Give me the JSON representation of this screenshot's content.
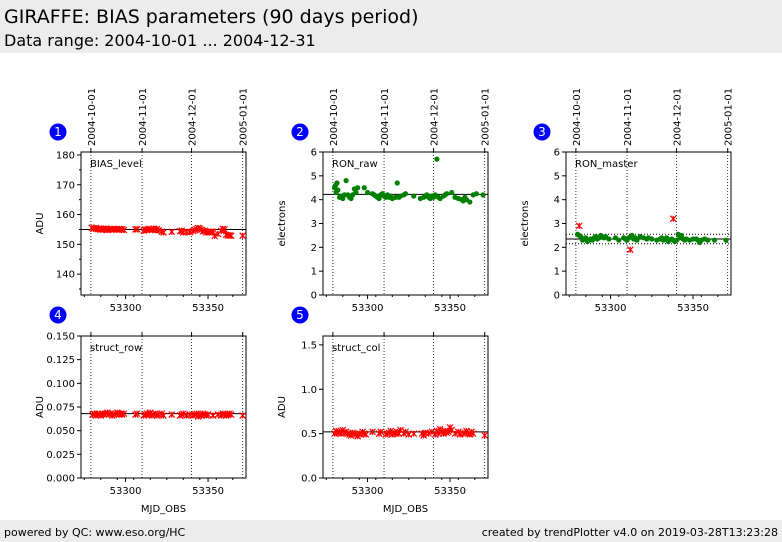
{
  "header": {
    "title": "GIRAFFE: BIAS parameters (90 days period)",
    "subtitle": "Data range: 2004-10-01 ... 2004-12-31"
  },
  "footer": {
    "left": "powered by QC: www.eso.org/HC",
    "right": "created by trendPlotter v4.0 on 2019-03-28T13:23:28"
  },
  "colors": {
    "red": "#ff0000",
    "green": "#008000",
    "badge": "#0000ff"
  },
  "chart_data": [
    {
      "type": "scatter",
      "index_label": "1",
      "panel_label": "BIAS_level",
      "ylabel": "ADU",
      "xlabel": "",
      "xlim": [
        53273,
        53373
      ],
      "ylim": [
        133,
        181
      ],
      "yticks": [
        140,
        150,
        160,
        170,
        180
      ],
      "yminor": 5,
      "ytick_format": "int",
      "xticks": [
        53300,
        53350
      ],
      "show_xtick_labels": true,
      "date_ticks": [
        {
          "x": 53279,
          "label": "2004-10-01"
        },
        {
          "x": 53310,
          "label": "2004-11-01"
        },
        {
          "x": 53340,
          "label": "2004-12-01"
        },
        {
          "x": 53371,
          "label": "2005-01-01"
        }
      ],
      "ref_lines": [
        {
          "y": 155.0,
          "style": "solid"
        }
      ],
      "series": [
        {
          "marker": "star",
          "color": "red",
          "x": [
            53279.5,
            53280.5,
            53282,
            53283,
            53284,
            53285,
            53286,
            53287,
            53288,
            53289,
            53290,
            53291,
            53292,
            53293,
            53294,
            53295,
            53296,
            53297,
            53298,
            53299,
            53306,
            53307,
            53311,
            53312,
            53313,
            53314,
            53315,
            53316,
            53317,
            53318,
            53319,
            53320,
            53322,
            53323,
            53328,
            53333,
            53334,
            53335,
            53337,
            53339,
            53341,
            53342,
            53343,
            53344,
            53345,
            53346,
            53347,
            53348,
            53349,
            53350,
            53351,
            53352,
            53353,
            53354,
            53356,
            53358,
            53359,
            53360,
            53361,
            53362,
            53363,
            53364,
            53371
          ],
          "y": [
            155.6,
            155.2,
            155.5,
            155.1,
            155.3,
            154.9,
            155.2,
            155.0,
            155.3,
            154.8,
            155.1,
            155.0,
            155.2,
            155.0,
            155.1,
            154.9,
            155.2,
            155.0,
            155.1,
            154.8,
            155.0,
            155.1,
            154.6,
            155.0,
            154.8,
            155.2,
            155.0,
            154.9,
            155.3,
            154.8,
            155.1,
            154.7,
            154.3,
            154.0,
            154.2,
            154.4,
            154.6,
            154.0,
            154.2,
            154.1,
            154.5,
            154.8,
            155.2,
            155.5,
            155.3,
            154.9,
            154.4,
            154.6,
            154.0,
            154.2,
            154.0,
            154.3,
            154.2,
            152.8,
            153.5,
            154.5,
            155.2,
            155.0,
            153.2,
            153.0,
            153.0,
            152.9,
            152.9
          ]
        }
      ]
    },
    {
      "type": "scatter",
      "index_label": "2",
      "panel_label": "RON_raw",
      "ylabel": "electrons",
      "xlabel": "",
      "xlim": [
        53273,
        53373
      ],
      "ylim": [
        0,
        6
      ],
      "yticks": [
        0,
        1,
        2,
        3,
        4,
        5,
        6
      ],
      "yminor": 0,
      "ytick_format": "int",
      "xticks": [
        53300,
        53350
      ],
      "show_xtick_labels": true,
      "date_ticks": [
        {
          "x": 53279,
          "label": "2004-10-01"
        },
        {
          "x": 53310,
          "label": "2004-11-01"
        },
        {
          "x": 53340,
          "label": "2004-12-01"
        },
        {
          "x": 53371,
          "label": "2005-01-01"
        }
      ],
      "ref_lines": [
        {
          "y": 4.22,
          "style": "solid"
        }
      ],
      "series": [
        {
          "marker": "dot",
          "color": "green",
          "x": [
            53280,
            53280.6,
            53281,
            53281.5,
            53282,
            53283,
            53284,
            53285,
            53286,
            53287,
            53288,
            53289,
            53290,
            53291,
            53292,
            53293,
            53294,
            53298,
            53300,
            53303,
            53304,
            53305,
            53306,
            53307,
            53308,
            53309,
            53310,
            53311,
            53312,
            53313,
            53314,
            53315,
            53317,
            53318,
            53319,
            53320,
            53322,
            53323,
            53328,
            53332,
            53334,
            53335,
            53336,
            53337,
            53338,
            53339,
            53340,
            53341,
            53342,
            53343,
            53344,
            53346,
            53347,
            53348,
            53351,
            53353,
            53355,
            53357,
            53358,
            53359,
            53360,
            53362,
            53364,
            53366,
            53370
          ],
          "y": [
            4.5,
            4.6,
            4.3,
            4.7,
            4.4,
            4.1,
            4.15,
            4.05,
            4.2,
            4.8,
            4.2,
            4.1,
            4.05,
            4.2,
            4.45,
            4.3,
            4.5,
            4.5,
            4.3,
            4.25,
            4.2,
            4.15,
            4.1,
            4.05,
            4.2,
            4.25,
            4.15,
            4.1,
            4.2,
            4.1,
            4.15,
            4.05,
            4.1,
            4.7,
            4.1,
            4.15,
            4.2,
            4.25,
            4.15,
            4.05,
            4.1,
            4.15,
            4.2,
            4.1,
            4.05,
            4.15,
            4.1,
            4.2,
            5.7,
            4.1,
            4.05,
            4.15,
            4.2,
            4.25,
            4.3,
            4.1,
            4.05,
            4.0,
            3.95,
            4.1,
            4.0,
            3.9,
            4.2,
            4.25,
            4.2
          ]
        }
      ]
    },
    {
      "type": "scatter",
      "index_label": "3",
      "panel_label": "RON_master",
      "ylabel": "electrons",
      "xlabel": "",
      "xlim": [
        53273,
        53373
      ],
      "ylim": [
        0,
        6
      ],
      "yticks": [
        0,
        1,
        2,
        3,
        4,
        5,
        6
      ],
      "yminor": 0,
      "ytick_format": "int",
      "xticks": [
        53300,
        53350
      ],
      "show_xtick_labels": true,
      "date_ticks": [
        {
          "x": 53279,
          "label": "2004-10-01"
        },
        {
          "x": 53310,
          "label": "2004-11-01"
        },
        {
          "x": 53340,
          "label": "2004-12-01"
        },
        {
          "x": 53371,
          "label": "2005-01-01"
        }
      ],
      "ref_lines": [
        {
          "y": 2.35,
          "style": "solid"
        },
        {
          "y": 2.55,
          "style": "dotted"
        },
        {
          "y": 2.15,
          "style": "dotted"
        }
      ],
      "series": [
        {
          "marker": "dot",
          "color": "green",
          "x": [
            53280,
            53281,
            53282,
            53283,
            53284,
            53285,
            53286,
            53287,
            53288,
            53289,
            53290,
            53291,
            53292,
            53293,
            53294,
            53295,
            53296,
            53297,
            53299,
            53303,
            53305,
            53308,
            53309,
            53310,
            53311,
            53312,
            53313,
            53314,
            53315,
            53316,
            53318,
            53320,
            53322,
            53323,
            53325,
            53328,
            53330,
            53331,
            53332,
            53333,
            53334,
            53335,
            53337,
            53338,
            53339,
            53340,
            53341,
            53342,
            53343,
            53344,
            53345,
            53346,
            53348,
            53350,
            53352,
            53353,
            53354,
            53355,
            53357,
            53359,
            53363,
            53370
          ],
          "y": [
            2.55,
            2.5,
            2.45,
            2.3,
            2.35,
            2.4,
            2.25,
            2.3,
            2.35,
            2.3,
            2.4,
            2.45,
            2.35,
            2.4,
            2.5,
            2.45,
            2.4,
            2.45,
            2.35,
            2.4,
            2.3,
            2.4,
            2.35,
            2.3,
            2.4,
            2.45,
            2.5,
            2.35,
            2.4,
            2.3,
            2.45,
            2.4,
            2.35,
            2.4,
            2.35,
            2.3,
            2.35,
            2.4,
            2.3,
            2.35,
            2.4,
            2.25,
            2.35,
            2.3,
            2.25,
            2.3,
            2.55,
            2.4,
            2.5,
            2.35,
            2.3,
            2.35,
            2.3,
            2.35,
            2.35,
            2.3,
            2.2,
            2.3,
            2.35,
            2.3,
            2.3,
            2.3
          ]
        },
        {
          "marker": "star",
          "color": "red",
          "x": [
            53281,
            53312,
            53338
          ],
          "y": [
            2.9,
            1.9,
            3.2
          ]
        }
      ]
    },
    {
      "type": "scatter",
      "index_label": "4",
      "panel_label": "struct_row",
      "ylabel": "ADU",
      "xlabel": "MJD_OBS",
      "xlim": [
        53273,
        53373
      ],
      "ylim": [
        0,
        0.15
      ],
      "yticks": [
        0.0,
        0.025,
        0.05,
        0.075,
        0.1,
        0.125,
        0.15
      ],
      "yminor": 0,
      "ytick_format": "fixed3",
      "xticks": [
        53300,
        53350
      ],
      "show_xtick_labels": true,
      "date_ticks": [
        {
          "x": 53279,
          "label": ""
        },
        {
          "x": 53310,
          "label": ""
        },
        {
          "x": 53340,
          "label": ""
        },
        {
          "x": 53371,
          "label": ""
        }
      ],
      "ref_lines": [
        {
          "y": 0.068,
          "style": "solid"
        }
      ],
      "series": [
        {
          "marker": "star",
          "color": "red",
          "x": [
            53280,
            53281,
            53282,
            53283,
            53284,
            53285,
            53286,
            53287,
            53288,
            53289,
            53290,
            53291,
            53292,
            53293,
            53294,
            53295,
            53296,
            53297,
            53298,
            53299,
            53306,
            53307,
            53311,
            53312,
            53313,
            53314,
            53315,
            53316,
            53317,
            53318,
            53319,
            53320,
            53322,
            53323,
            53328,
            53333,
            53334,
            53335,
            53337,
            53339,
            53341,
            53342,
            53343,
            53344,
            53345,
            53346,
            53347,
            53348,
            53349,
            53350,
            53353,
            53356,
            53358,
            53359,
            53360,
            53361,
            53362,
            53363,
            53364,
            53371
          ],
          "y": [
            0.067,
            0.068,
            0.066,
            0.068,
            0.067,
            0.066,
            0.068,
            0.067,
            0.068,
            0.069,
            0.067,
            0.068,
            0.066,
            0.067,
            0.068,
            0.069,
            0.067,
            0.068,
            0.067,
            0.068,
            0.067,
            0.068,
            0.066,
            0.067,
            0.068,
            0.067,
            0.069,
            0.066,
            0.067,
            0.068,
            0.066,
            0.067,
            0.068,
            0.066,
            0.067,
            0.066,
            0.067,
            0.068,
            0.066,
            0.067,
            0.066,
            0.067,
            0.068,
            0.065,
            0.067,
            0.066,
            0.068,
            0.067,
            0.066,
            0.067,
            0.066,
            0.067,
            0.066,
            0.068,
            0.067,
            0.066,
            0.067,
            0.068,
            0.067,
            0.066
          ]
        }
      ]
    },
    {
      "type": "scatter",
      "index_label": "5",
      "panel_label": "struct_col",
      "ylabel": "ADU",
      "xlabel": "MJD_OBS",
      "xlim": [
        53273,
        53373
      ],
      "ylim": [
        0,
        1.6
      ],
      "yticks": [
        0.0,
        0.5,
        1.0,
        1.5
      ],
      "yminor": 0,
      "ytick_format": "fixed1",
      "xticks": [
        53300,
        53350
      ],
      "show_xtick_labels": true,
      "date_ticks": [
        {
          "x": 53279,
          "label": ""
        },
        {
          "x": 53310,
          "label": ""
        },
        {
          "x": 53340,
          "label": ""
        },
        {
          "x": 53371,
          "label": ""
        }
      ],
      "ref_lines": [
        {
          "y": 0.52,
          "style": "solid"
        }
      ],
      "series": [
        {
          "marker": "star",
          "color": "red",
          "x": [
            53280,
            53281,
            53282,
            53283,
            53284,
            53285,
            53286,
            53287,
            53288,
            53289,
            53290,
            53291,
            53292,
            53293,
            53294,
            53295,
            53296,
            53297,
            53298,
            53299,
            53303,
            53307,
            53308,
            53311,
            53312,
            53313,
            53314,
            53315,
            53316,
            53317,
            53318,
            53319,
            53320,
            53322,
            53323,
            53325,
            53328,
            53333,
            53334,
            53335,
            53337,
            53339,
            53341,
            53342,
            53343,
            53344,
            53345,
            53346,
            53347,
            53348,
            53349,
            53350,
            53351,
            53353,
            53355,
            53356,
            53358,
            53359,
            53360,
            53361,
            53362,
            53363,
            53364,
            53371
          ],
          "y": [
            0.5,
            0.53,
            0.51,
            0.52,
            0.5,
            0.54,
            0.51,
            0.52,
            0.5,
            0.49,
            0.48,
            0.51,
            0.5,
            0.49,
            0.47,
            0.5,
            0.49,
            0.52,
            0.5,
            0.49,
            0.52,
            0.5,
            0.52,
            0.49,
            0.5,
            0.51,
            0.53,
            0.49,
            0.51,
            0.5,
            0.52,
            0.5,
            0.54,
            0.5,
            0.52,
            0.49,
            0.5,
            0.5,
            0.48,
            0.51,
            0.5,
            0.52,
            0.49,
            0.53,
            0.5,
            0.55,
            0.52,
            0.5,
            0.53,
            0.51,
            0.52,
            0.57,
            0.54,
            0.5,
            0.52,
            0.49,
            0.5,
            0.51,
            0.53,
            0.5,
            0.49,
            0.52,
            0.5,
            0.48
          ]
        }
      ]
    }
  ]
}
